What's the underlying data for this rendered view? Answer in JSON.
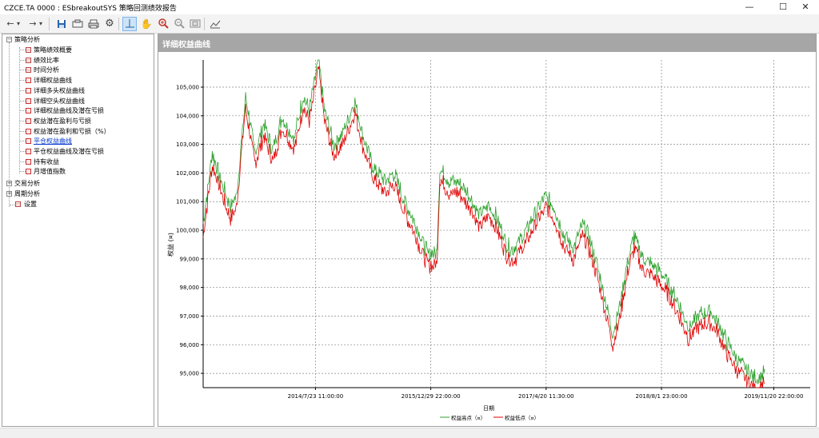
{
  "window": {
    "title": "CZCE.TA 0000 : ESbreakoutSYS 策略回测绩效报告",
    "minimize_icon": "minimize-icon",
    "maximize_icon": "maximize-icon",
    "close_icon": "close-icon"
  },
  "toolbar": {
    "icons": [
      "back-arrow-icon",
      "back-dropdown-icon",
      "forward-arrow-icon",
      "forward-dropdown-icon",
      "save-icon",
      "export-icon",
      "print-icon",
      "settings-icon",
      "crosshair-icon",
      "pan-hand-icon",
      "zoom-in-icon",
      "zoom-out-icon",
      "zoom-fit-icon",
      "copy-image-icon"
    ],
    "active": "crosshair-icon"
  },
  "tree": {
    "root": {
      "label": "策略分析",
      "expanded": true,
      "children": [
        {
          "label": "策略绩效概要",
          "icon": "grid"
        },
        {
          "label": "绩效比率",
          "icon": "grid"
        },
        {
          "label": "时间分析",
          "icon": "grid"
        },
        {
          "label": "详细权益曲线",
          "icon": "chart"
        },
        {
          "label": "详细多头权益曲线",
          "icon": "chart"
        },
        {
          "label": "详细空头权益曲线",
          "icon": "chart"
        },
        {
          "label": "详细权益曲线及潜在亏损",
          "icon": "chart"
        },
        {
          "label": "权益潜在盈利与亏损",
          "icon": "chart"
        },
        {
          "label": "权益潜在盈利和亏损（%）",
          "icon": "chart"
        },
        {
          "label": "平仓权益曲线",
          "icon": "chart",
          "link": true
        },
        {
          "label": "平仓权益曲线及潜在亏损",
          "icon": "chart"
        },
        {
          "label": "持有收益",
          "icon": "chart"
        },
        {
          "label": "月增值指数",
          "icon": "chart"
        }
      ]
    },
    "others": [
      {
        "label": "交易分析",
        "expanded": false
      },
      {
        "label": "周期分析",
        "expanded": false
      },
      {
        "label": "设置",
        "leaf": true
      }
    ]
  },
  "panel": {
    "title": "详细权益曲线"
  },
  "chart_data": {
    "type": "line",
    "title": "",
    "xlabel": "日期",
    "ylabel": "权益 (¤)",
    "x_ticks": [
      "2014/7/23 11:00:00",
      "2015/12/29 22:00:00",
      "2017/4/20 11:30:00",
      "2018/8/1 23:00:00",
      "2019/11/20 22:00:00"
    ],
    "y_ticks": [
      95000,
      96000,
      97000,
      98000,
      99000,
      100000,
      101000,
      102000,
      103000,
      104000,
      105000
    ],
    "y_tick_labels": [
      "95,000",
      "96,000",
      "97,000",
      "98,000",
      "99,000",
      "100,000",
      "101,000",
      "102,000",
      "103,000",
      "104,000",
      "105,000"
    ],
    "ylim": [
      94500,
      105950
    ],
    "grid": true,
    "legend_position": "bottom-center",
    "series": [
      {
        "name": "权益高点（¤）",
        "color": "#2ca02c"
      },
      {
        "name": "权益低点（¤）",
        "color": "#e00000"
      }
    ],
    "x_index_range": [
      0,
      100
    ],
    "x_tick_index": [
      18.5,
      37.5,
      56.5,
      75.5,
      94
    ],
    "equity_path": [
      [
        0,
        100000
      ],
      [
        1.5,
        102500
      ],
      [
        3,
        101500
      ],
      [
        4.5,
        100600
      ],
      [
        5.5,
        101000
      ],
      [
        7,
        104500
      ],
      [
        8.5,
        102500
      ],
      [
        10,
        103500
      ],
      [
        11.5,
        102600
      ],
      [
        13,
        103800
      ],
      [
        15,
        103000
      ],
      [
        16.5,
        104500
      ],
      [
        17.5,
        104000
      ],
      [
        19,
        105800
      ],
      [
        20,
        104000
      ],
      [
        21.5,
        102800
      ],
      [
        23,
        103200
      ],
      [
        25,
        104300
      ],
      [
        26.5,
        103000
      ],
      [
        28,
        102000
      ],
      [
        30,
        101500
      ],
      [
        31.5,
        101800
      ],
      [
        33,
        100900
      ],
      [
        35,
        100000
      ],
      [
        37,
        99000
      ],
      [
        38.5,
        99000
      ],
      [
        39,
        102000
      ],
      [
        40.5,
        101500
      ],
      [
        42,
        101500
      ],
      [
        44,
        101000
      ],
      [
        45.5,
        100300
      ],
      [
        47,
        100700
      ],
      [
        48.5,
        100200
      ],
      [
        50,
        99300
      ],
      [
        51,
        99100
      ],
      [
        53,
        99700
      ],
      [
        55,
        100500
      ],
      [
        56.5,
        101000
      ],
      [
        58,
        100500
      ],
      [
        59.5,
        99600
      ],
      [
        61,
        99200
      ],
      [
        62.5,
        100000
      ],
      [
        63.5,
        99600
      ],
      [
        65,
        98500
      ],
      [
        66,
        97600
      ],
      [
        67.5,
        96200
      ],
      [
        68.5,
        97000
      ],
      [
        70,
        98800
      ],
      [
        71,
        99600
      ],
      [
        72.5,
        98800
      ],
      [
        74,
        98600
      ],
      [
        75.5,
        98300
      ],
      [
        77,
        97800
      ],
      [
        78.5,
        97200
      ],
      [
        80,
        96400
      ],
      [
        81.5,
        96800
      ],
      [
        83.5,
        97000
      ],
      [
        85,
        96500
      ],
      [
        86.5,
        95800
      ],
      [
        88,
        95300
      ],
      [
        90,
        94800
      ],
      [
        91.5,
        94600
      ],
      [
        92.5,
        94900
      ]
    ]
  }
}
